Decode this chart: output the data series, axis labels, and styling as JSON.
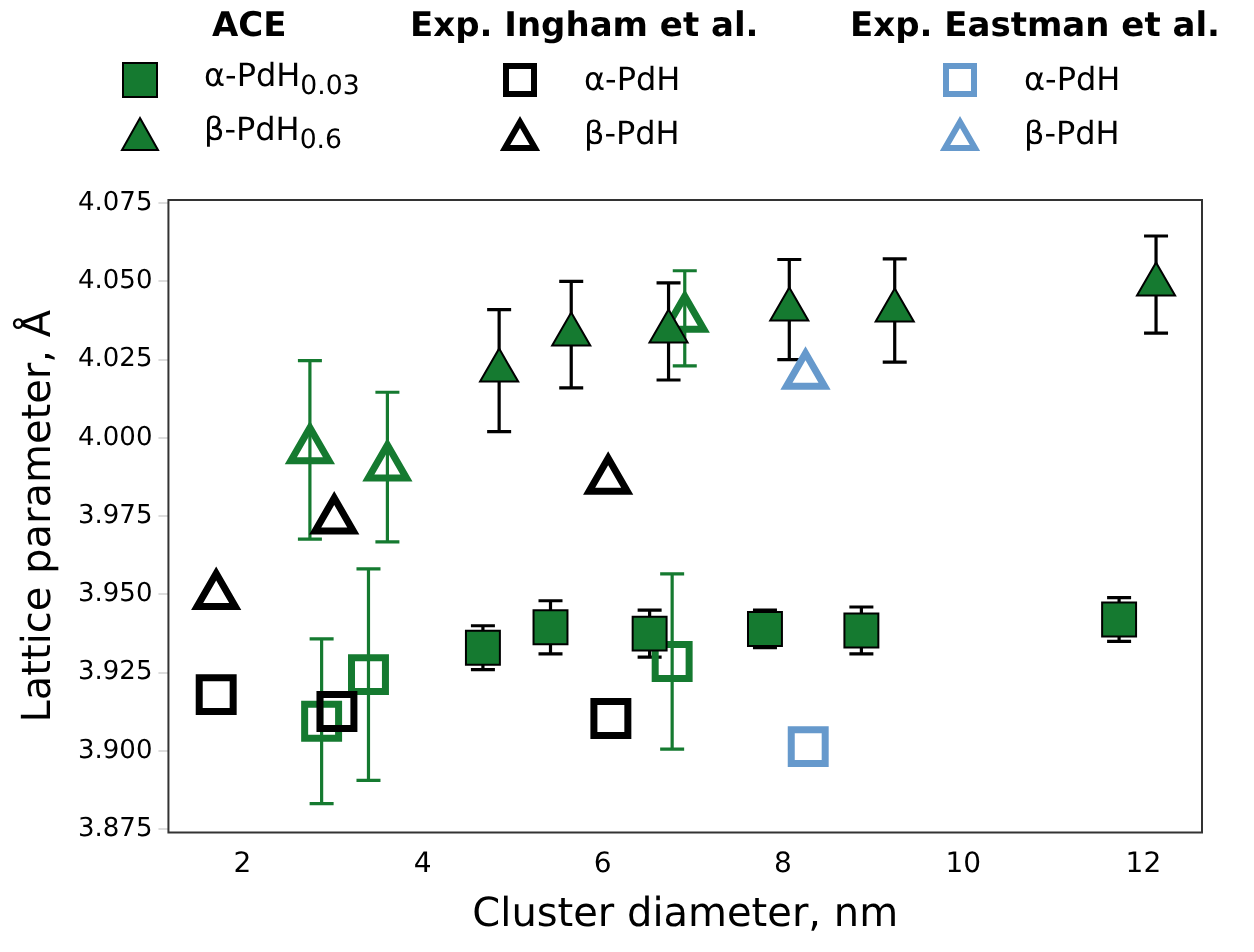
{
  "chart_data": {
    "type": "scatter",
    "xlabel": "Cluster diameter, nm",
    "ylabel": "Lattice parameter, Å",
    "annotations": [
      "ACE",
      "Exp.  Ingham et al.",
      "Exp.  Eastman et al."
    ],
    "xlim": [
      1.18,
      12.65
    ],
    "xticks": [
      2,
      4,
      6,
      8,
      10,
      12
    ],
    "ylim": [
      3.874,
      4.076
    ],
    "yticks": [
      3.875,
      {
        "value": 3.9,
        "label": "3.900"
      },
      3.925,
      {
        "value": 3.95,
        "label": "3.950"
      },
      3.975,
      {
        "value": 4.0,
        "label": "4.000"
      },
      4.025,
      {
        "value": 4.05,
        "label": "4.050"
      },
      4.075
    ],
    "grid": false,
    "legend": "top",
    "series": [
      {
        "name": "α-PdH$_{0.03}$",
        "color": "#157a30",
        "marker": "square",
        "x": [
          4.67,
          5.42,
          6.52,
          7.8,
          8.87,
          11.73
        ],
        "values": [
          3.933,
          3.9395,
          3.9375,
          3.939,
          3.9385,
          3.942
        ],
        "errors": [
          0.007,
          0.0085,
          0.0075,
          0.006,
          0.0075,
          0.007
        ]
      },
      {
        "name": "β-PdH$_{0.6}$",
        "color": "#157a30",
        "marker": "triangle",
        "x": [
          4.85,
          5.65,
          6.73,
          8.07,
          9.24,
          12.14
        ],
        "values": [
          4.0215,
          4.033,
          4.034,
          4.041,
          4.0407,
          4.049
        ],
        "errors": [
          0.0195,
          0.017,
          0.0155,
          0.016,
          0.0165,
          0.0155
        ]
      },
      {
        "name": "α-PdH",
        "color": "#000000",
        "marker": "square-open",
        "x": [
          1.71,
          3.05,
          6.09
        ],
        "values": [
          3.918,
          3.9126,
          3.9104
        ]
      },
      {
        "name": "β-PdH",
        "color": "#000000",
        "marker": "triangle-open",
        "x": [
          1.71,
          3.02,
          6.06
        ],
        "values": [
          3.9497,
          3.9738,
          3.9865
        ]
      },
      {
        "name": "α-PdH",
        "color": "#6699cc",
        "marker": "square-open",
        "x": [
          8.28
        ],
        "values": [
          3.9014
        ]
      },
      {
        "name": "β-PdH",
        "color": "#6699cc",
        "marker": "triangle-open",
        "x": [
          8.25
        ],
        "values": [
          4.02
        ]
      },
      {
        "color": "#157a30",
        "marker": "triangle-open",
        "x": [
          2.75,
          3.61,
          6.91
        ],
        "values": [
          3.9962,
          3.9907,
          4.0382
        ],
        "errors": [
          0.0285,
          0.0239,
          0.0152
        ]
      },
      {
        "color": "#157a30",
        "marker": "square-open",
        "x": [
          2.88,
          3.4,
          6.77
        ],
        "values": [
          3.9095,
          3.9244,
          3.9286
        ],
        "errors": [
          0.0263,
          0.0338,
          0.028
        ]
      }
    ]
  }
}
